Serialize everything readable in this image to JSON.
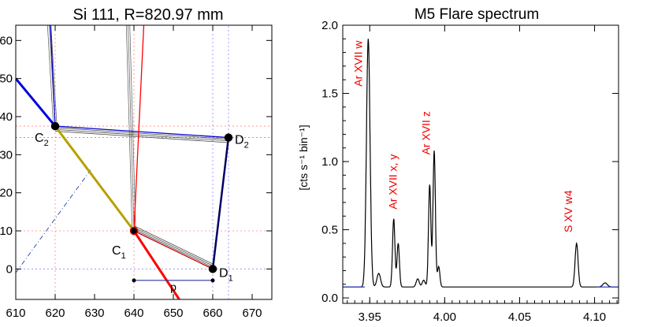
{
  "chart_data": [
    {
      "type": "diagram",
      "title": "Si 111, R=820.97 mm",
      "xlim": [
        610,
        675
      ],
      "ylim": [
        -8,
        64
      ],
      "xticks": [
        610,
        620,
        630,
        640,
        650,
        660,
        670
      ],
      "yticks": [
        0,
        10,
        20,
        30,
        40,
        50,
        60
      ],
      "ytick_labels": [
        "0",
        "10",
        "20",
        "30",
        "40",
        "50",
        "60"
      ],
      "points": [
        {
          "name": "C",
          "sub": "2",
          "x": 620,
          "y": 37.5,
          "color": "#000000"
        },
        {
          "name": "D",
          "sub": "2",
          "x": 664,
          "y": 34.5,
          "color": "#000000"
        },
        {
          "name": "C",
          "sub": "1",
          "x": 640,
          "y": 10,
          "color": "#cc0000"
        },
        {
          "name": "D",
          "sub": "1",
          "x": 660,
          "y": 0,
          "color": "#000000"
        }
      ],
      "segments": [
        {
          "kind": "blue-ray",
          "from": [
            610,
            50
          ],
          "to": [
            620,
            37.5
          ],
          "color": "#0000dd"
        },
        {
          "kind": "olive-ray",
          "from": [
            620,
            37.5
          ],
          "to": [
            640,
            10
          ],
          "color": "#b8a000"
        },
        {
          "kind": "red-ray",
          "from": [
            640,
            10
          ],
          "to": [
            651.5,
            -8
          ],
          "color": "#ff0000"
        },
        {
          "kind": "c2-d2",
          "from": [
            620,
            37.5
          ],
          "to": [
            664,
            34.5
          ],
          "color": "#0000cc"
        },
        {
          "kind": "d2-d1",
          "from": [
            664,
            34.5
          ],
          "to": [
            660,
            0
          ],
          "color": "#000066"
        },
        {
          "kind": "c1-d1",
          "from": [
            640,
            10
          ],
          "to": [
            660,
            0
          ],
          "color": "#cc0000"
        },
        {
          "kind": "blue-up",
          "from": [
            620,
            37.5
          ],
          "to": [
            618.8,
            64
          ],
          "color": "#0000cc"
        },
        {
          "kind": "red-up",
          "from": [
            640,
            10
          ],
          "to": [
            642.5,
            64
          ],
          "color": "#ff0000"
        }
      ],
      "dimension": {
        "label": "p",
        "from": 640,
        "to": 660,
        "y": -3
      }
    },
    {
      "type": "line",
      "title": "M5 Flare spectrum",
      "ylabel": "[cts s⁻¹ bin⁻¹]",
      "xlim": [
        3.932,
        4.116
      ],
      "ylim": [
        -0.04,
        2.0
      ],
      "xticks": [
        3.95,
        4.0,
        4.05,
        4.1
      ],
      "xtick_labels": [
        "3.95",
        "4.00",
        "4.05",
        "4.10"
      ],
      "yticks": [
        0.0,
        0.5,
        1.0,
        1.5,
        2.0
      ],
      "ytick_labels": [
        "0.0",
        "0.5",
        "1.0",
        "1.5",
        "2.0"
      ],
      "series_color": "#000000",
      "baseline": 0.08,
      "peaks": [
        {
          "x": 3.949,
          "h": 1.82,
          "w": 0.0012
        },
        {
          "x": 3.956,
          "h": 0.1,
          "w": 0.0012
        },
        {
          "x": 3.966,
          "h": 0.5,
          "w": 0.0008
        },
        {
          "x": 3.969,
          "h": 0.32,
          "w": 0.0008
        },
        {
          "x": 3.982,
          "h": 0.06,
          "w": 0.001
        },
        {
          "x": 3.986,
          "h": 0.05,
          "w": 0.001
        },
        {
          "x": 3.99,
          "h": 0.75,
          "w": 0.0008
        },
        {
          "x": 3.993,
          "h": 1.0,
          "w": 0.0008
        },
        {
          "x": 3.996,
          "h": 0.15,
          "w": 0.0008
        },
        {
          "x": 4.088,
          "h": 0.32,
          "w": 0.001
        },
        {
          "x": 4.107,
          "h": 0.03,
          "w": 0.0015
        }
      ],
      "labels": [
        {
          "text": "Ar XVII w",
          "x": 3.945,
          "y": 1.55
        },
        {
          "text": "Ar XVII x, y",
          "x": 3.968,
          "y": 0.65
        },
        {
          "text": "Ar XVII z",
          "x": 3.99,
          "y": 1.05
        },
        {
          "text": "S XV w4",
          "x": 4.085,
          "y": 0.48
        }
      ],
      "label_color": "#ee0000"
    }
  ]
}
